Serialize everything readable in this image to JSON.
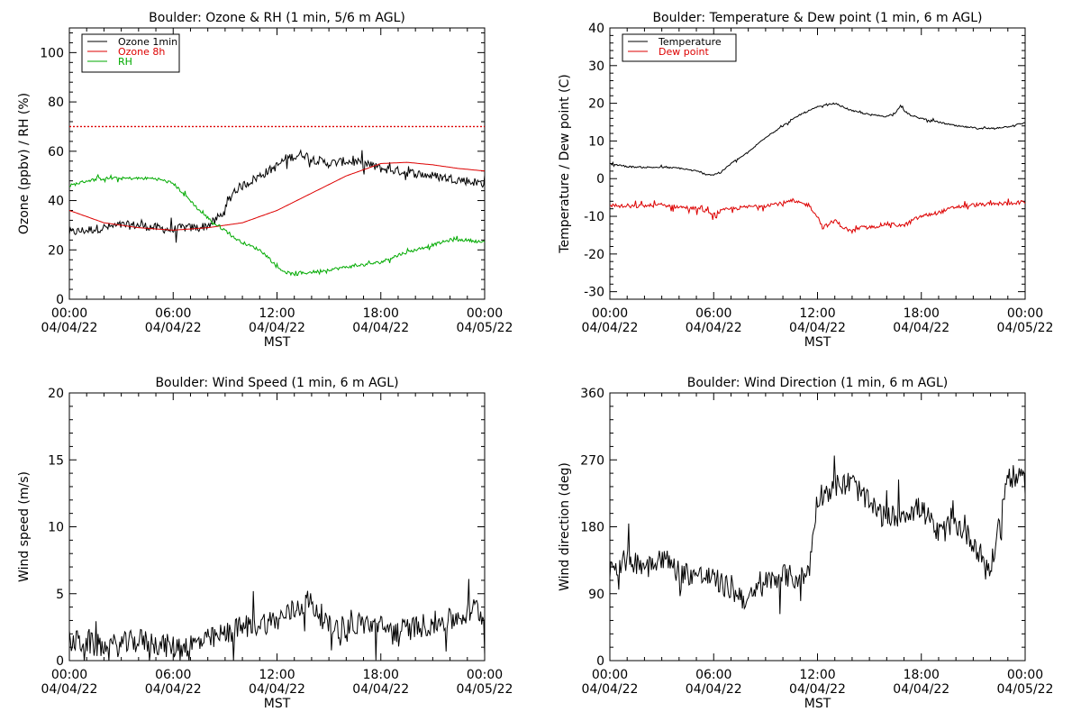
{
  "x_ticks": [
    {
      "time": "00:00",
      "date": "04/04/22"
    },
    {
      "time": "06:00",
      "date": "04/04/22"
    },
    {
      "time": "12:00",
      "date": "04/04/22"
    },
    {
      "time": "18:00",
      "date": "04/04/22"
    },
    {
      "time": "00:00",
      "date": "04/05/22"
    }
  ],
  "chart_data": [
    {
      "id": "ozone_rh",
      "type": "line",
      "title": "Boulder: Ozone & RH (1 min, 5/6 m AGL)",
      "xlabel": "MST",
      "ylabel": "Ozone (ppbv) / RH (%)",
      "xlim": [
        0,
        24
      ],
      "ylim": [
        0,
        110
      ],
      "yticks": [
        0,
        20,
        40,
        60,
        80,
        100
      ],
      "legend_position": "top-left",
      "reference_lines": [
        {
          "y": 70,
          "color": "#dd0000",
          "style": "dotted"
        }
      ],
      "series": [
        {
          "name": "Ozone 1min",
          "color": "#000000",
          "noise": 1.8,
          "x": [
            0,
            1,
            2,
            3,
            4,
            5,
            6,
            6.5,
            7,
            7.5,
            8,
            8.5,
            9,
            9.5,
            10,
            10.5,
            11,
            11.5,
            12,
            12.5,
            13,
            13.5,
            14,
            15,
            16,
            17,
            18,
            19,
            20,
            21,
            22,
            23,
            24
          ],
          "y": [
            27,
            28,
            29,
            30,
            30,
            29,
            28,
            29,
            29,
            29,
            30,
            32,
            36,
            44,
            46,
            48,
            50,
            52,
            54,
            57,
            58,
            59,
            57,
            55,
            56,
            55,
            53,
            52,
            51,
            50,
            49,
            48,
            47
          ]
        },
        {
          "name": "Ozone 8h",
          "color": "#dd0000",
          "noise": 0,
          "x": [
            0,
            2,
            4,
            6,
            8,
            10,
            12,
            14,
            16,
            18,
            19.5,
            21,
            22.5,
            24
          ],
          "y": [
            36,
            31,
            29,
            28,
            29,
            31,
            36,
            43,
            50,
            55,
            55.5,
            54.5,
            53,
            52
          ]
        },
        {
          "name": "RH",
          "color": "#00aa00",
          "noise": 0.6,
          "x": [
            0,
            1,
            2,
            3,
            4,
            5,
            6,
            7,
            7.5,
            8,
            8.5,
            9,
            9.5,
            10,
            11,
            11.5,
            12,
            12.5,
            13,
            14,
            15,
            16,
            17,
            18,
            19,
            20,
            21,
            22,
            23,
            24
          ],
          "y": [
            46,
            48,
            49,
            49,
            49,
            49,
            47,
            40,
            36,
            33,
            30,
            28,
            25,
            23,
            20,
            17,
            13,
            11,
            10,
            11,
            12,
            13,
            14,
            15,
            18,
            20,
            22,
            24,
            24,
            23
          ]
        }
      ]
    },
    {
      "id": "temp_dew",
      "type": "line",
      "title": "Boulder: Temperature & Dew point (1 min, 6 m AGL)",
      "xlabel": "MST",
      "ylabel": "Temperature / Dew point (C)",
      "xlim": [
        0,
        24
      ],
      "ylim": [
        -32,
        40
      ],
      "yticks": [
        -30,
        -20,
        -10,
        0,
        10,
        20,
        30,
        40
      ],
      "legend_position": "top-left",
      "series": [
        {
          "name": "Temperature",
          "color": "#000000",
          "noise": 0.2,
          "x": [
            0,
            1,
            2,
            3,
            4,
            5,
            5.5,
            6,
            6.5,
            7,
            8,
            9,
            10,
            11,
            12,
            13,
            14,
            15,
            16,
            16.5,
            16.8,
            17,
            17.5,
            18,
            19,
            20,
            21,
            22,
            23,
            24
          ],
          "y": [
            4,
            3.2,
            3,
            3,
            2.8,
            2,
            1.2,
            1,
            2,
            4,
            7,
            11,
            14,
            17,
            19,
            20,
            18,
            17,
            16.5,
            17.5,
            19.5,
            18,
            16.5,
            16,
            15,
            14,
            13.5,
            13.3,
            13.8,
            14.8
          ]
        },
        {
          "name": "Dew point",
          "color": "#dd0000",
          "noise": 0.5,
          "x": [
            0,
            1,
            2,
            3,
            4,
            5,
            5.5,
            6,
            6.5,
            7,
            8,
            9,
            10,
            10.5,
            11,
            11.5,
            12,
            12.3,
            12.7,
            13,
            13.5,
            14,
            14.5,
            15,
            16,
            17,
            17.5,
            18,
            19,
            20,
            21,
            22,
            23,
            24
          ],
          "y": [
            -7,
            -7.5,
            -7.2,
            -7,
            -7.5,
            -8,
            -8.5,
            -9.5,
            -8.5,
            -8,
            -7.5,
            -7,
            -6.5,
            -6,
            -6.5,
            -7,
            -10,
            -13,
            -12,
            -11,
            -13,
            -14,
            -13,
            -13,
            -12,
            -12.5,
            -11,
            -10,
            -9,
            -7.5,
            -7,
            -6.8,
            -6.5,
            -6.2
          ]
        }
      ]
    },
    {
      "id": "wind_speed",
      "type": "line",
      "title": "Boulder: Wind Speed (1 min, 6 m AGL)",
      "xlabel": "MST",
      "ylabel": "Wind speed (m/s)",
      "xlim": [
        0,
        24
      ],
      "ylim": [
        0,
        20
      ],
      "yticks": [
        0,
        5,
        10,
        15,
        20
      ],
      "series": [
        {
          "name": "",
          "color": "#000000",
          "noise": 0.9,
          "floor": 0,
          "x": [
            0,
            1,
            2,
            3,
            4,
            5,
            6,
            7,
            8,
            9,
            10,
            11,
            12,
            13,
            13.8,
            14.5,
            15,
            16,
            17,
            18,
            19,
            20,
            21,
            22,
            23,
            23.5,
            24
          ],
          "y": [
            1.4,
            1.3,
            1,
            1.2,
            1.5,
            1.3,
            1,
            1.2,
            1.5,
            2,
            2.5,
            2.8,
            3,
            3.8,
            4.5,
            3.5,
            2.5,
            2.5,
            2.8,
            2.5,
            2.2,
            2.5,
            2.8,
            3,
            3.5,
            4,
            3
          ]
        }
      ]
    },
    {
      "id": "wind_dir",
      "type": "line",
      "title": "Boulder: Wind Direction (1 min, 6 m AGL)",
      "xlabel": "MST",
      "ylabel": "Wind direction (deg)",
      "xlim": [
        0,
        24
      ],
      "ylim": [
        0,
        360
      ],
      "yticks": [
        0,
        90,
        180,
        270,
        360
      ],
      "series": [
        {
          "name": "",
          "color": "#000000",
          "noise": 16,
          "floor": 0,
          "ceil": 360,
          "x": [
            0,
            1,
            2,
            3,
            4,
            5,
            6,
            7,
            8,
            9,
            10,
            11,
            11.5,
            12,
            13,
            14,
            15,
            16,
            17,
            18,
            19,
            20,
            21,
            22,
            23,
            24
          ],
          "y": [
            125,
            135,
            130,
            140,
            120,
            115,
            110,
            95,
            80,
            105,
            115,
            110,
            120,
            220,
            235,
            240,
            210,
            190,
            200,
            205,
            170,
            185,
            160,
            120,
            250,
            240
          ]
        }
      ]
    }
  ]
}
